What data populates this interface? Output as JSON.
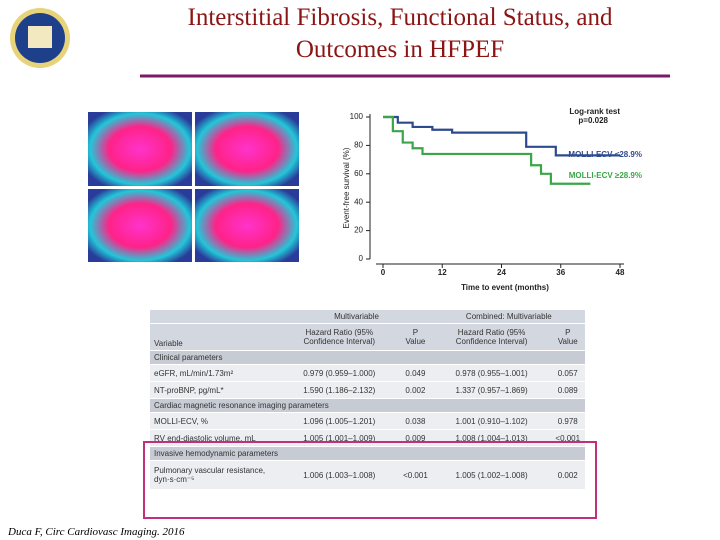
{
  "header": {
    "title_lines": [
      "Interstitial Fibrosis, Functional Status, and",
      "Outcomes in HFPEF"
    ]
  },
  "km_chart": {
    "type": "line",
    "stats": [
      "Log-rank test",
      "p=0.028"
    ],
    "y_label": "Event-free survival (%)",
    "x_label": "Time to event (months)",
    "xlim": [
      0,
      48
    ],
    "ylim": [
      0,
      100
    ],
    "xticks": [
      0,
      12,
      24,
      36,
      48
    ],
    "yticks": [
      0,
      20,
      40,
      60,
      80,
      100
    ],
    "series": [
      {
        "name": "MOLLI-ECV <28.9%",
        "color": "#2e4a8f",
        "x": [
          0,
          3,
          3,
          6,
          6,
          10,
          10,
          14,
          14,
          29,
          29,
          35,
          35,
          48
        ],
        "y": [
          100,
          100,
          96,
          96,
          93,
          93,
          91,
          91,
          89,
          89,
          79,
          79,
          73,
          73
        ]
      },
      {
        "name": "MOLLI-ECV ≥28.9%",
        "color": "#3aa648",
        "x": [
          0,
          2,
          2,
          4,
          4,
          6,
          6,
          8,
          8,
          30,
          30,
          32,
          32,
          34,
          34,
          42
        ],
        "y": [
          100,
          100,
          90,
          90,
          82,
          82,
          78,
          78,
          74,
          74,
          66,
          66,
          60,
          60,
          53,
          53
        ]
      }
    ]
  },
  "table": {
    "groups": [
      "Multivariable",
      "Combined: Multivariable"
    ],
    "columns": [
      "Variable",
      "Hazard Ratio (95% Confidence Interval)",
      "P Value",
      "Hazard Ratio (95% Confidence Interval)",
      "P Value"
    ],
    "sections": [
      {
        "title": "Clinical parameters",
        "rows": [
          [
            "eGFR, mL/min/1.73m²",
            "0.979 (0.959–1.000)",
            "0.049",
            "0.978 (0.955–1.001)",
            "0.057"
          ],
          [
            "NT-proBNP, pg/mL*",
            "1.590 (1.186–2.132)",
            "0.002",
            "1.337 (0.957–1.869)",
            "0.089"
          ]
        ]
      },
      {
        "title": "Cardiac magnetic resonance imaging parameters",
        "rows": [
          [
            "MOLLI-ECV, %",
            "1.096 (1.005–1.201)",
            "0.038",
            "1.001 (0.910–1.102)",
            "0.978"
          ],
          [
            "RV end-diastolic volume, mL",
            "1.005 (1.001–1.009)",
            "0.009",
            "1.008 (1.004–1.013)",
            "<0.001"
          ]
        ]
      },
      {
        "title": "Invasive hemodynamic parameters",
        "rows": [
          [
            "Pulmonary vascular resistance, dyn·s·cm⁻⁵",
            "1.006 (1.003–1.008)",
            "<0.001",
            "1.005 (1.002–1.008)",
            "0.002"
          ]
        ]
      }
    ]
  },
  "citation": "Duca F, Circ Cardiovasc Imaging. 2016"
}
